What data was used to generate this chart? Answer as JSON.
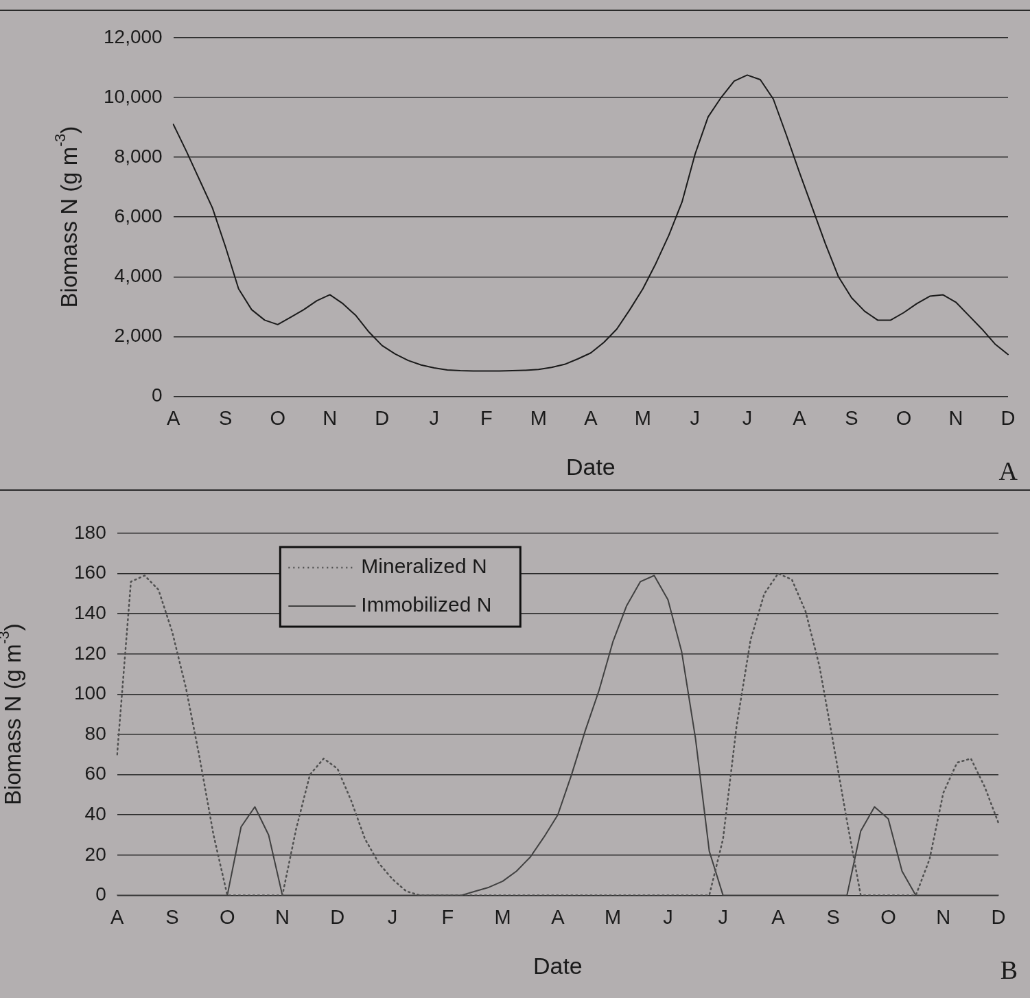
{
  "chart_data": [
    {
      "type": "line",
      "xlabel": "Date",
      "ylabel": "Biomass N (g m$^{-3}$)",
      "annotations": [
        "A"
      ],
      "ylim": [
        0,
        12000
      ],
      "yticks": [
        {
          "value": 0,
          "label": "0"
        },
        {
          "value": 2000,
          "label": "2,000"
        },
        {
          "value": 4000,
          "label": "4,000"
        },
        {
          "value": 6000,
          "label": "6,000"
        },
        {
          "value": 8000,
          "label": "8,000"
        },
        {
          "value": 10000,
          "label": "10,000"
        },
        {
          "value": 12000,
          "label": "12,000"
        }
      ],
      "categories": [
        "A",
        null,
        null,
        null,
        "S",
        null,
        null,
        null,
        "O",
        null,
        null,
        null,
        "N",
        null,
        null,
        null,
        "D",
        null,
        null,
        null,
        "J",
        null,
        null,
        null,
        "F",
        null,
        null,
        null,
        "M",
        null,
        null,
        null,
        "A",
        null,
        null,
        null,
        "M",
        null,
        null,
        null,
        "J",
        null,
        null,
        null,
        "J",
        null,
        null,
        null,
        "A",
        null,
        null,
        null,
        "S",
        null,
        null,
        null,
        "O",
        null,
        null,
        null,
        "N",
        null,
        null,
        null,
        "D"
      ],
      "grid": "y",
      "marker": "none",
      "line_style": "solid",
      "series": [
        {
          "color": "#1a1a1a",
          "values": [
            9100,
            8200,
            7250,
            6300,
            5000,
            3600,
            2900,
            2550,
            2400,
            2650,
            2900,
            3200,
            3400,
            3100,
            2700,
            2150,
            1700,
            1420,
            1200,
            1050,
            950,
            880,
            860,
            850,
            850,
            850,
            860,
            870,
            900,
            970,
            1070,
            1250,
            1450,
            1800,
            2250,
            2900,
            3600,
            4450,
            5400,
            6500,
            8100,
            9350,
            10000,
            10550,
            10750,
            10600,
            9950,
            8750,
            7500,
            6300,
            5100,
            4000,
            3300,
            2850,
            2550,
            2550,
            2800,
            3100,
            3350,
            3400,
            3150,
            2700,
            2250,
            1750,
            1400
          ]
        }
      ]
    },
    {
      "type": "line",
      "xlabel": "Date",
      "ylabel": "Biomass N (g m$^{-3}$)",
      "annotations": [
        "B"
      ],
      "ylim": [
        0,
        180
      ],
      "yticks": [
        0,
        20,
        40,
        60,
        80,
        100,
        120,
        140,
        160,
        180
      ],
      "categories": [
        "A",
        null,
        null,
        null,
        "S",
        null,
        null,
        null,
        "O",
        null,
        null,
        null,
        "N",
        null,
        null,
        null,
        "D",
        null,
        null,
        null,
        "J",
        null,
        null,
        null,
        "F",
        null,
        null,
        null,
        "M",
        null,
        null,
        null,
        "A",
        null,
        null,
        null,
        "M",
        null,
        null,
        null,
        "J",
        null,
        null,
        null,
        "J",
        null,
        null,
        null,
        "A",
        null,
        null,
        null,
        "S",
        null,
        null,
        null,
        "O",
        null,
        null,
        null,
        "N",
        null,
        null,
        null,
        "D"
      ],
      "grid": "y",
      "marker": "none",
      "legend": "top left",
      "series": [
        {
          "name": "Mineralized N",
          "color": "#505050",
          "line_style": "dotted",
          "values": [
            70,
            156,
            159,
            152,
            131,
            103,
            68,
            30,
            0,
            0,
            0,
            0,
            0,
            33,
            60,
            68,
            63,
            47,
            28,
            16,
            8,
            2,
            0,
            0,
            0,
            0,
            0,
            0,
            0,
            0,
            0,
            0,
            0,
            0,
            0,
            0,
            0,
            0,
            0,
            0,
            0,
            0,
            0,
            0,
            28,
            85,
            127,
            150,
            160,
            157,
            141,
            114,
            76,
            37,
            0,
            0,
            0,
            0,
            0,
            18,
            51,
            66,
            68,
            54,
            36
          ]
        },
        {
          "name": "Immobilized N",
          "color": "#404040",
          "line_style": "solid",
          "values": [
            0,
            0,
            0,
            0,
            0,
            0,
            0,
            0,
            0,
            34,
            44,
            30,
            0,
            0,
            0,
            0,
            0,
            0,
            0,
            0,
            0,
            0,
            0,
            0,
            0,
            0,
            2,
            4,
            7,
            12,
            19,
            29,
            40,
            60,
            82,
            102,
            126,
            144,
            156,
            159,
            147,
            121,
            78,
            22,
            0,
            0,
            0,
            0,
            0,
            0,
            0,
            0,
            0,
            0,
            32,
            44,
            38,
            12,
            0,
            0,
            0,
            0,
            0,
            0,
            0
          ]
        }
      ]
    }
  ]
}
